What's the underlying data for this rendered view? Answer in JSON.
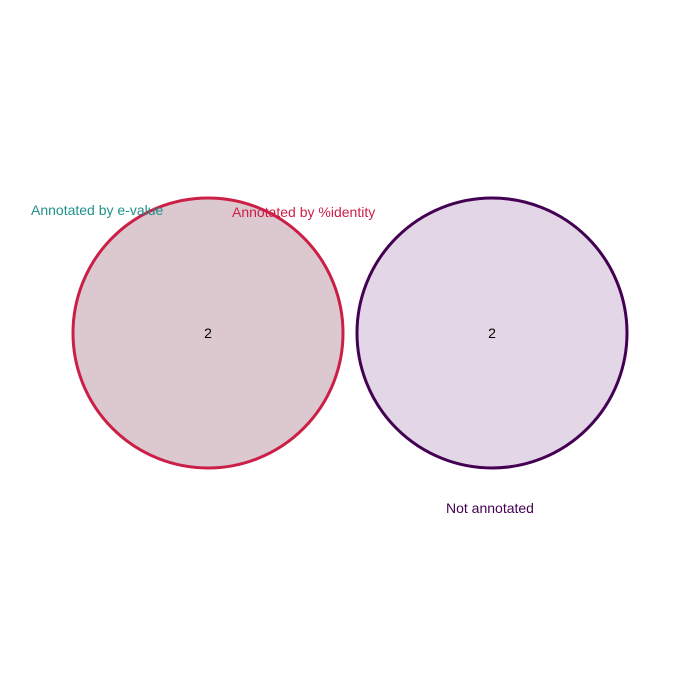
{
  "diagram": {
    "type": "venn",
    "sets": [
      {
        "name": "Annotated by e-value",
        "color": "#21908c"
      },
      {
        "name": "Annotated by %identity",
        "color": "#cc1f46"
      },
      {
        "name": "Not annotated",
        "color": "#440154"
      }
    ],
    "regions": [
      {
        "sets": [
          "Annotated by e-value",
          "Annotated by %identity"
        ],
        "count": "2"
      },
      {
        "sets": [
          "Not annotated"
        ],
        "count": "2"
      }
    ],
    "fill_colors": [
      "#dcc9cf",
      "#e3d6e6"
    ]
  }
}
